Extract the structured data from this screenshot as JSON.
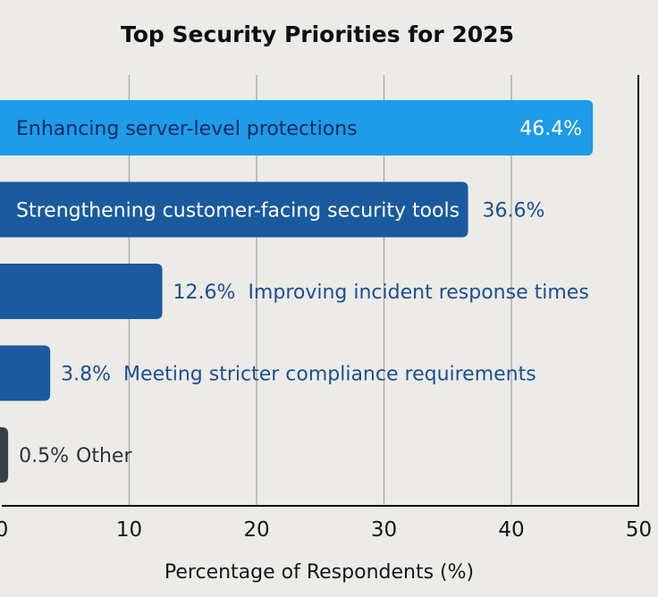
{
  "chart_data": {
    "type": "bar",
    "orientation": "horizontal",
    "title": "Top Security Priorities for 2025",
    "xlabel": "Percentage of Respondents (%)",
    "ylabel": "",
    "xlim": [
      0,
      50
    ],
    "xticks": [
      0,
      10,
      20,
      30,
      40,
      50
    ],
    "xtick_labels": [
      "0",
      "10",
      "20",
      "30",
      "40",
      "50"
    ],
    "grid": "vertical",
    "categories": [
      "Enhancing server-level protections",
      "Strengthening customer-facing security tools",
      "Improving incident response times",
      "Meeting stricter compliance requirements",
      "Other"
    ],
    "values": [
      46.4,
      36.6,
      12.6,
      3.8,
      0.5
    ],
    "value_labels": [
      "46.4%",
      "36.6%",
      "12.6%",
      "3.8%",
      "0.5%"
    ],
    "colors": {
      "background": "#ecebe7",
      "highlight_bar": "#1e9be9",
      "bar": "#1a5a9e",
      "other_bar": "#3a3f47",
      "label_dark": "#0c2a5c",
      "label_light": "#ffffff",
      "label_blue": "#1a4f92",
      "label_other": "#2e3138",
      "grid": "#a9a9a9",
      "axis": "#111111"
    }
  }
}
